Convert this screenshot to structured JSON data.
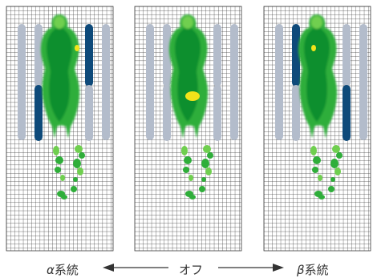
{
  "panels": [
    {
      "id": "alpha",
      "label_greek": "α",
      "label_text": "系統",
      "active_bars": [
        "left-bottom",
        "right-top"
      ]
    },
    {
      "id": "off",
      "label_greek": "",
      "label_text": "オフ",
      "active_bars": []
    },
    {
      "id": "beta",
      "label_greek": "β",
      "label_text": "系統",
      "active_bars": [
        "left-top",
        "right-bottom"
      ]
    }
  ],
  "colors": {
    "background": "#ffffff",
    "grid_line": "#3a3a3a",
    "bar_inactive": "#b3bccb",
    "bar_active": "#0e4a7a",
    "pressure_low": "#6fcf4f",
    "pressure_mid": "#2fae3a",
    "pressure_high": "#0d8f2f",
    "pressure_peak": "#f2e31a",
    "arrow": "#333333"
  }
}
